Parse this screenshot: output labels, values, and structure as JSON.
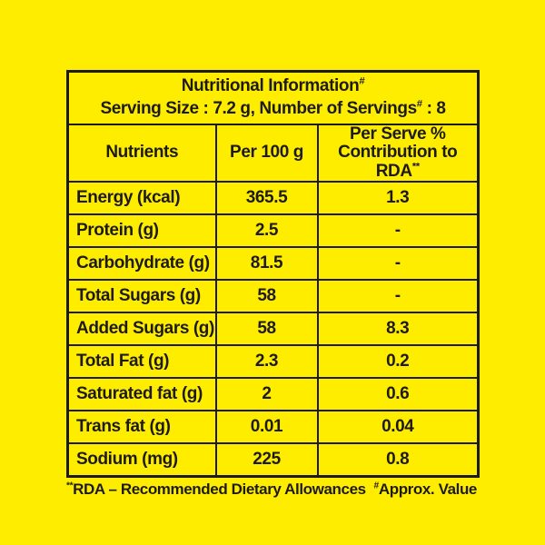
{
  "colors": {
    "background": "#FFED00",
    "ink": "#1D1B19"
  },
  "header": {
    "title": "Nutritional Information",
    "title_sup": "#",
    "serving_prefix": "Serving Size : 7.2 g, Number of Servings",
    "serving_sup": "#",
    "serving_suffix": " : 8"
  },
  "table": {
    "columns": [
      {
        "label": "Nutrients"
      },
      {
        "label": "Per 100 g"
      },
      {
        "line1": "Per Serve %",
        "line2": "Contribution to RDA",
        "sup": "**"
      }
    ],
    "rows": [
      {
        "nutrient": "Energy (kcal)",
        "per_100g": "365.5",
        "per_serve_rda_pct": "1.3"
      },
      {
        "nutrient": "Protein (g)",
        "per_100g": "2.5",
        "per_serve_rda_pct": "-"
      },
      {
        "nutrient": "Carbohydrate (g)",
        "per_100g": "81.5",
        "per_serve_rda_pct": "-"
      },
      {
        "nutrient": "Total Sugars (g)",
        "per_100g": "58",
        "per_serve_rda_pct": "-"
      },
      {
        "nutrient": "Added Sugars (g)",
        "per_100g": "58",
        "per_serve_rda_pct": "8.3"
      },
      {
        "nutrient": "Total Fat (g)",
        "per_100g": "2.3",
        "per_serve_rda_pct": "0.2"
      },
      {
        "nutrient": "Saturated fat (g)",
        "per_100g": "2",
        "per_serve_rda_pct": "0.6"
      },
      {
        "nutrient": "Trans fat (g)",
        "per_100g": "0.01",
        "per_serve_rda_pct": "0.04"
      },
      {
        "nutrient": "Sodium (mg)",
        "per_100g": "225",
        "per_serve_rda_pct": "0.8"
      }
    ]
  },
  "footer": {
    "rda_sup": "**",
    "rda_text": "RDA – Recommended Dietary Allowances",
    "approx_sup": "#",
    "approx_text": "Approx. Value"
  }
}
